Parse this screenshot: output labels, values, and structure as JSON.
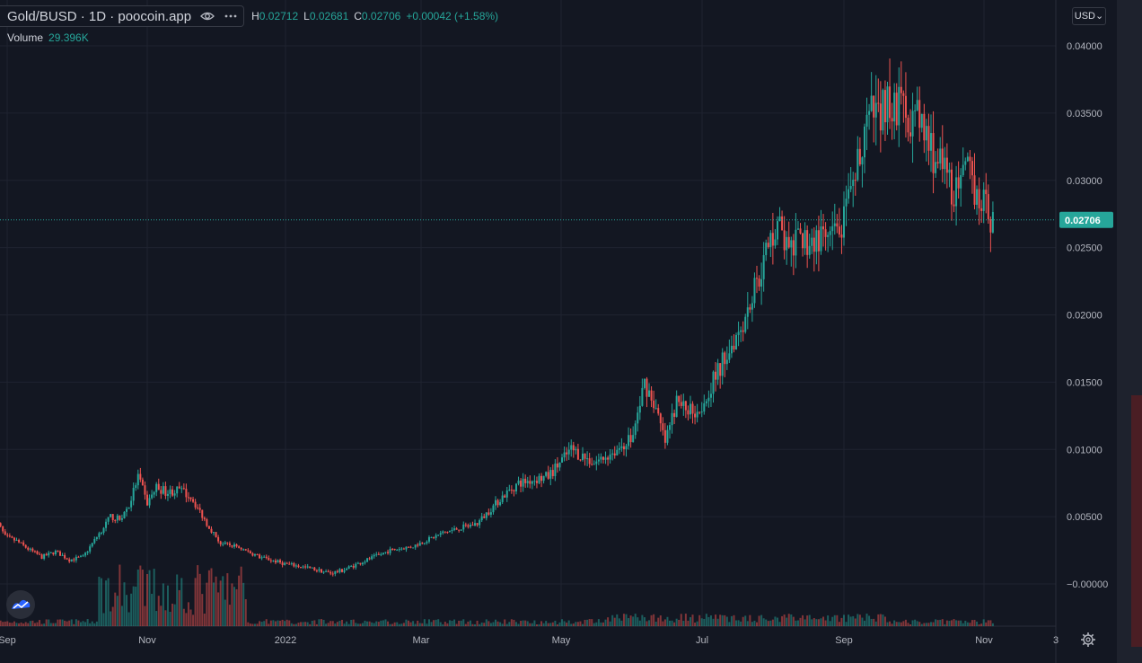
{
  "legend": {
    "symbol": "Gold/BUSD · 1D · poocoin.app",
    "high_label": "H",
    "high": "0.02712",
    "low_label": "L",
    "low": "0.02681",
    "close_label": "C",
    "close": "0.02706",
    "change": "+0.00042 (+1.58%)",
    "volume_label": "Volume",
    "volume": "29.396K"
  },
  "currency": "USD",
  "price_label": "0.02706",
  "colors": {
    "up": "#26a69a",
    "down": "#ef5350",
    "background": "#131722",
    "grid": "#1f2330",
    "text": "#b2b5be"
  },
  "chart_data": {
    "type": "candlestick",
    "title": "",
    "x_ticks": [
      "Sep",
      "Nov",
      "2022",
      "Mar",
      "May",
      "Jul",
      "Sep",
      "Nov",
      "3"
    ],
    "y_ticks": [
      "0.04000",
      "0.03500",
      "0.03000",
      "0.02500",
      "0.02000",
      "0.01500",
      "0.01000",
      "0.00500",
      "−0.00000"
    ],
    "ylim": [
      -0.0016,
      0.0414
    ],
    "last_price": 0.02706,
    "series": [
      {
        "name": "Gold/BUSD",
        "keypoints": [
          [
            "2021-08-25",
            0.0055
          ],
          [
            "2021-08-31",
            0.0035
          ],
          [
            "2021-09-05",
            0.0032
          ],
          [
            "2021-09-10",
            0.0026
          ],
          [
            "2021-09-16",
            0.002
          ],
          [
            "2021-09-22",
            0.0024
          ],
          [
            "2021-09-28",
            0.0018
          ],
          [
            "2021-10-04",
            0.002
          ],
          [
            "2021-10-10",
            0.0035
          ],
          [
            "2021-10-16",
            0.005
          ],
          [
            "2021-10-20",
            0.0048
          ],
          [
            "2021-10-24",
            0.0058
          ],
          [
            "2021-10-28",
            0.008
          ],
          [
            "2021-11-01",
            0.006
          ],
          [
            "2021-11-05",
            0.0072
          ],
          [
            "2021-11-10",
            0.0068
          ],
          [
            "2021-11-15",
            0.007
          ],
          [
            "2021-11-20",
            0.0065
          ],
          [
            "2021-11-27",
            0.0045
          ],
          [
            "2021-12-03",
            0.003
          ],
          [
            "2021-12-10",
            0.0028
          ],
          [
            "2021-12-20",
            0.002
          ],
          [
            "2021-12-31",
            0.0015
          ],
          [
            "2022-01-10",
            0.0012
          ],
          [
            "2022-01-20",
            0.0008
          ],
          [
            "2022-01-25",
            0.001
          ],
          [
            "2022-02-05",
            0.0018
          ],
          [
            "2022-02-15",
            0.0025
          ],
          [
            "2022-02-25",
            0.0028
          ],
          [
            "2022-03-10",
            0.0038
          ],
          [
            "2022-03-25",
            0.0045
          ],
          [
            "2022-04-05",
            0.0065
          ],
          [
            "2022-04-12",
            0.0075
          ],
          [
            "2022-04-25",
            0.008
          ],
          [
            "2022-05-05",
            0.01
          ],
          [
            "2022-05-15",
            0.009
          ],
          [
            "2022-05-25",
            0.01
          ],
          [
            "2022-06-01",
            0.011
          ],
          [
            "2022-06-06",
            0.015
          ],
          [
            "2022-06-10",
            0.0135
          ],
          [
            "2022-06-15",
            0.0105
          ],
          [
            "2022-06-20",
            0.0135
          ],
          [
            "2022-06-25",
            0.013
          ],
          [
            "2022-06-30",
            0.013
          ],
          [
            "2022-07-10",
            0.0165
          ],
          [
            "2022-07-20",
            0.02
          ],
          [
            "2022-07-28",
            0.024
          ],
          [
            "2022-08-03",
            0.027
          ],
          [
            "2022-08-08",
            0.0245
          ],
          [
            "2022-08-13",
            0.0255
          ],
          [
            "2022-08-18",
            0.0255
          ],
          [
            "2022-08-26",
            0.0255
          ],
          [
            "2022-08-31",
            0.0265
          ],
          [
            "2022-09-05",
            0.029
          ],
          [
            "2022-09-10",
            0.034
          ],
          [
            "2022-09-15",
            0.035
          ],
          [
            "2022-09-20",
            0.036
          ],
          [
            "2022-09-25",
            0.0355
          ],
          [
            "2022-09-30",
            0.035
          ],
          [
            "2022-10-05",
            0.034
          ],
          [
            "2022-10-10",
            0.032
          ],
          [
            "2022-10-15",
            0.0305
          ],
          [
            "2022-10-20",
            0.029
          ],
          [
            "2022-10-25",
            0.0305
          ],
          [
            "2022-10-30",
            0.029
          ],
          [
            "2022-11-03",
            0.0275
          ],
          [
            "2022-11-05",
            0.02706
          ]
        ]
      }
    ]
  }
}
